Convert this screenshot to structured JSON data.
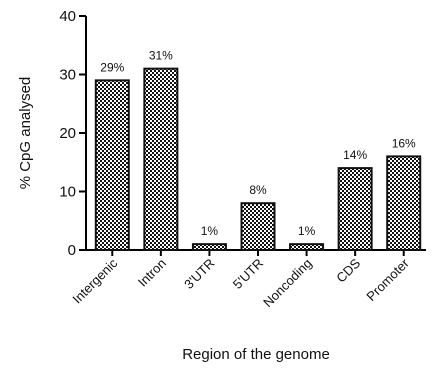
{
  "chart_data": {
    "type": "bar",
    "categories": [
      "Intergenic",
      "Intron",
      "3'UTR",
      "5'UTR",
      "Noncoding",
      "CDS",
      "Promoter"
    ],
    "values": [
      29,
      31,
      1,
      8,
      1,
      14,
      16
    ],
    "data_labels": [
      "29%",
      "31%",
      "1%",
      "8%",
      "1%",
      "14%",
      "16%"
    ],
    "xlabel": "Region of the genome",
    "ylabel": "% CpG analysed",
    "ylim": [
      0,
      40
    ],
    "yticks": [
      0,
      10,
      20,
      30,
      40
    ],
    "grid": false,
    "bar_fill": "checkered",
    "colors": {
      "bar_dark": "#111111",
      "bar_light": "#ffffff",
      "axis": "#000000"
    }
  }
}
